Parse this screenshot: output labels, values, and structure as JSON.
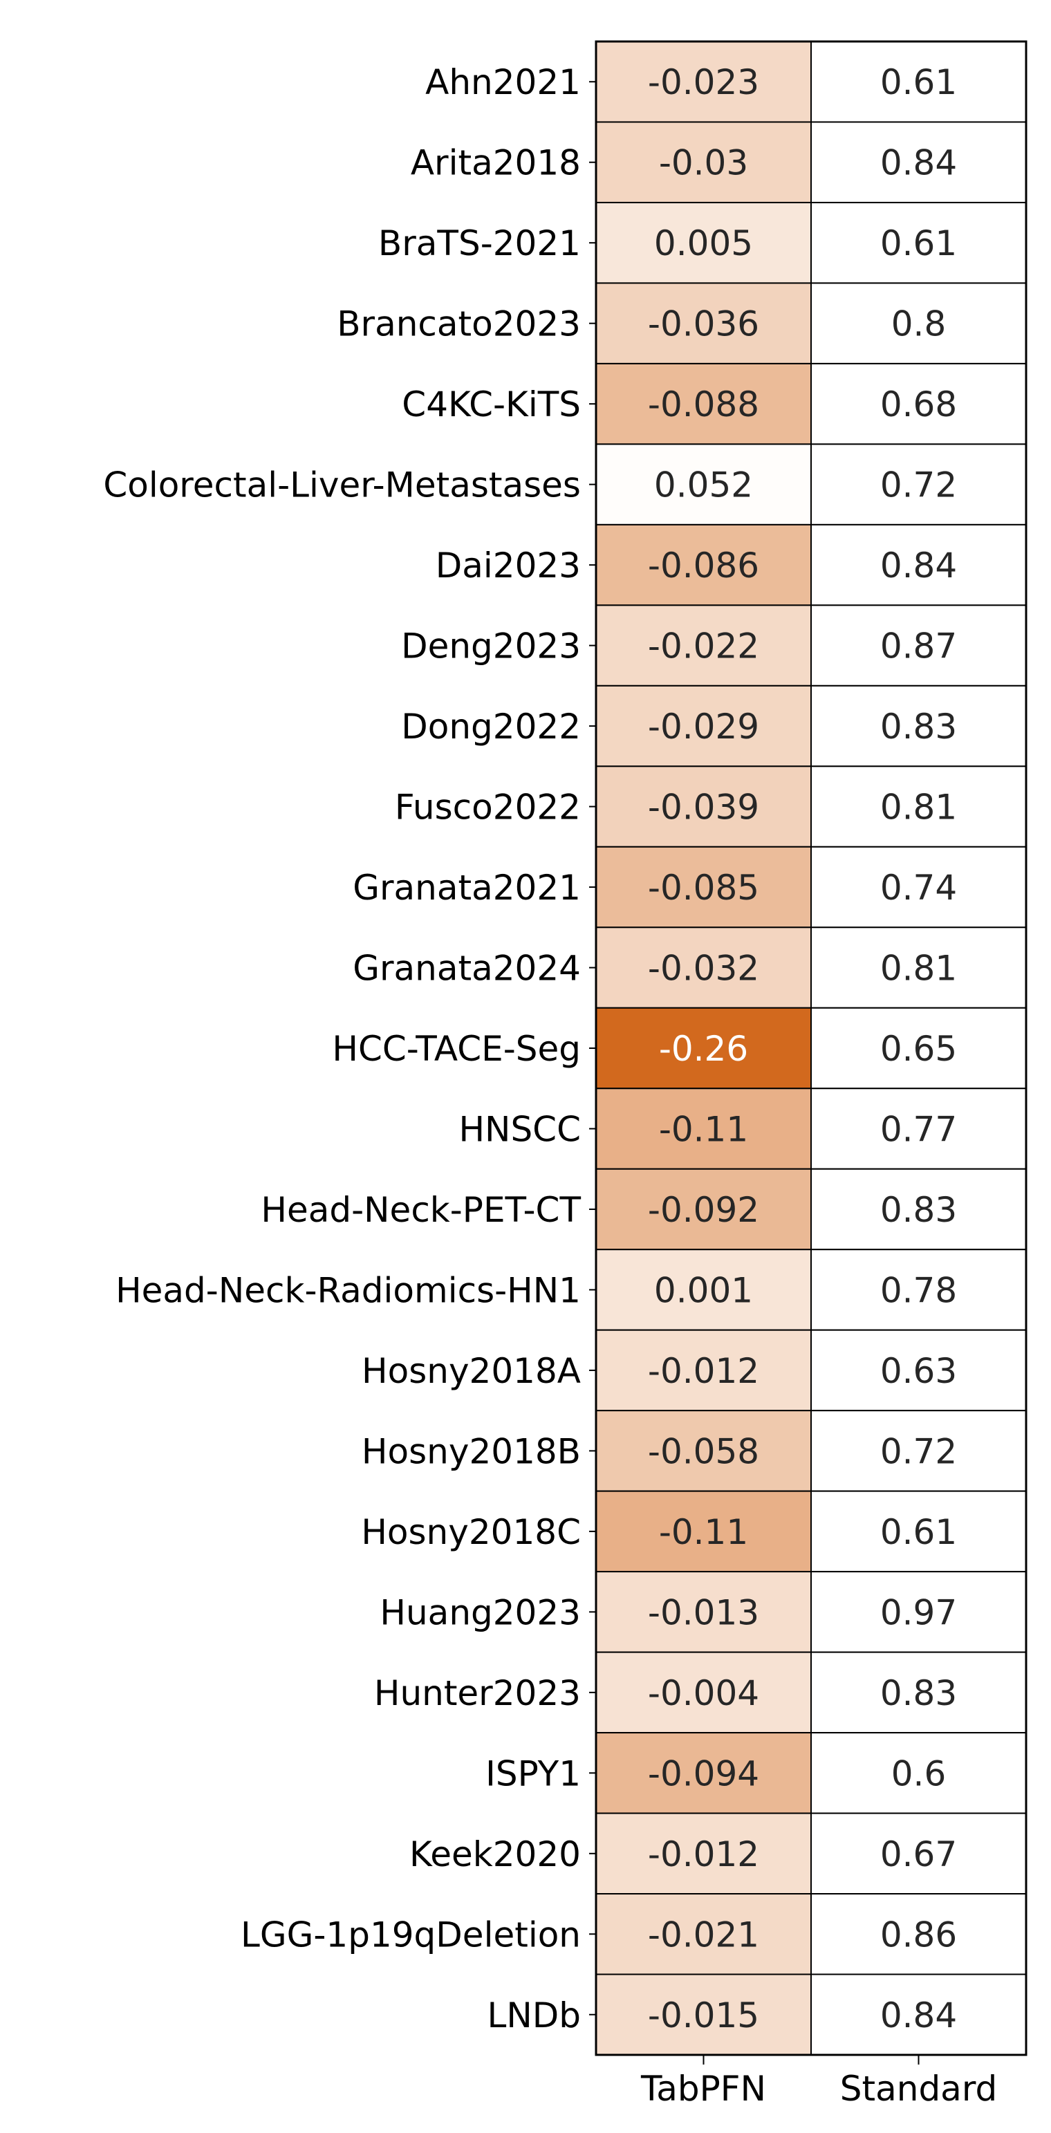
{
  "chart_data": {
    "type": "heatmap",
    "title": "",
    "xlabel": "",
    "ylabel": "",
    "columns": [
      "TabPFN",
      "Standard"
    ],
    "rows": [
      "Ahn2021",
      "Arita2018",
      "BraTS-2021",
      "Brancato2023",
      "C4KC-KiTS",
      "Colorectal-Liver-Metastases",
      "Dai2023",
      "Deng2023",
      "Dong2022",
      "Fusco2022",
      "Granata2021",
      "Granata2024",
      "HCC-TACE-Seg",
      "HNSCC",
      "Head-Neck-PET-CT",
      "Head-Neck-Radiomics-HN1",
      "Hosny2018A",
      "Hosny2018B",
      "Hosny2018C",
      "Huang2023",
      "Hunter2023",
      "ISPY1",
      "Keek2020",
      "LGG-1p19qDeletion",
      "LNDb"
    ],
    "values": [
      [
        "-0.023",
        "0.61"
      ],
      [
        "-0.03",
        "0.84"
      ],
      [
        "0.005",
        "0.61"
      ],
      [
        "-0.036",
        "0.8"
      ],
      [
        "-0.088",
        "0.68"
      ],
      [
        "0.052",
        "0.72"
      ],
      [
        "-0.086",
        "0.84"
      ],
      [
        "-0.022",
        "0.87"
      ],
      [
        "-0.029",
        "0.83"
      ],
      [
        "-0.039",
        "0.81"
      ],
      [
        "-0.085",
        "0.74"
      ],
      [
        "-0.032",
        "0.81"
      ],
      [
        "-0.26",
        "0.65"
      ],
      [
        "-0.11",
        "0.77"
      ],
      [
        "-0.092",
        "0.83"
      ],
      [
        "0.001",
        "0.78"
      ],
      [
        "-0.012",
        "0.63"
      ],
      [
        "-0.058",
        "0.72"
      ],
      [
        "-0.11",
        "0.61"
      ],
      [
        "-0.013",
        "0.97"
      ],
      [
        "-0.004",
        "0.83"
      ],
      [
        "-0.094",
        "0.6"
      ],
      [
        "-0.012",
        "0.67"
      ],
      [
        "-0.021",
        "0.86"
      ],
      [
        "-0.015",
        "0.84"
      ]
    ],
    "color_scale": {
      "column": "TabPFN",
      "low_color": "#d2691e",
      "high_color": "#fffdfb",
      "min": -0.26,
      "max": 0.052
    },
    "standard_column_color": "#ffffff",
    "grid": true,
    "legend": "none"
  }
}
